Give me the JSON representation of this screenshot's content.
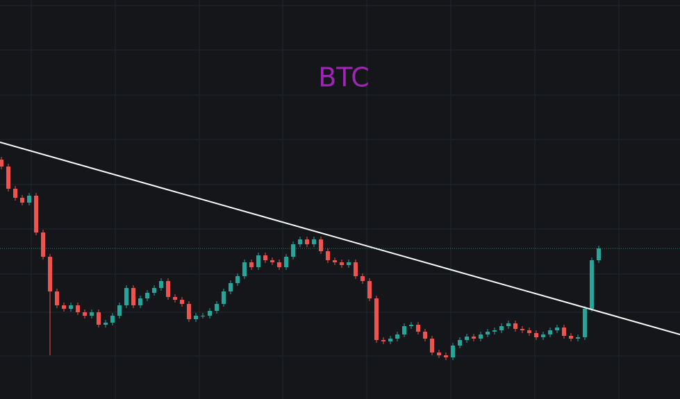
{
  "chart_data": {
    "type": "candlestick",
    "title": "BTC",
    "title_color": "#9c27b0",
    "up_color": "#26a69a",
    "down_color": "#ef5350",
    "ylim": [
      0,
      575
    ],
    "series": [
      {
        "open": [
          345,
          335,
          303,
          290,
          283,
          293,
          240,
          205,
          155,
          135,
          130,
          135,
          125,
          120,
          125,
          107,
          110,
          120,
          135,
          160,
          135,
          145,
          153,
          160,
          170,
          147,
          143,
          137,
          115,
          120,
          120,
          127,
          137,
          155,
          167,
          177,
          197,
          190,
          207,
          200,
          197,
          190,
          205,
          223,
          230,
          223,
          230,
          213,
          200,
          197,
          193,
          197,
          177,
          170,
          145,
          85,
          83,
          87,
          93,
          105,
          107,
          97,
          87,
          67,
          63,
          60,
          77,
          85,
          90,
          87,
          93,
          97,
          99,
          105,
          109,
          101,
          99,
          95,
          89,
          93,
          99,
          103,
          91,
          87,
          89,
          130,
          200
        ],
        "high": [
          349,
          339,
          307,
          294,
          297,
          297,
          244,
          209,
          159,
          139,
          139,
          139,
          129,
          129,
          129,
          114,
          124,
          139,
          164,
          164,
          149,
          157,
          164,
          174,
          174,
          151,
          147,
          141,
          124,
          124,
          131,
          141,
          159,
          171,
          181,
          201,
          201,
          211,
          211,
          204,
          201,
          209,
          227,
          234,
          234,
          234,
          234,
          217,
          204,
          201,
          201,
          201,
          181,
          174,
          149,
          89,
          91,
          97,
          109,
          111,
          111,
          101,
          91,
          71,
          67,
          81,
          89,
          94,
          94,
          97,
          101,
          103,
          109,
          113,
          113,
          105,
          103,
          99,
          97,
          103,
          107,
          107,
          95,
          93,
          134,
          204,
          221
        ],
        "low": [
          331,
          299,
          286,
          279,
          279,
          236,
          201,
          63,
          131,
          126,
          126,
          121,
          116,
          116,
          103,
          103,
          106,
          116,
          131,
          131,
          131,
          141,
          149,
          156,
          143,
          139,
          133,
          111,
          111,
          116,
          116,
          123,
          133,
          151,
          163,
          173,
          186,
          186,
          196,
          193,
          186,
          186,
          201,
          219,
          219,
          219,
          209,
          196,
          193,
          189,
          189,
          173,
          166,
          141,
          81,
          79,
          79,
          83,
          89,
          101,
          93,
          83,
          63,
          59,
          56,
          56,
          73,
          81,
          83,
          83,
          89,
          93,
          95,
          101,
          97,
          95,
          91,
          85,
          85,
          89,
          95,
          87,
          83,
          83,
          85,
          126,
          196
        ],
        "close": [
          335,
          303,
          290,
          283,
          293,
          240,
          205,
          155,
          135,
          130,
          135,
          125,
          120,
          125,
          107,
          110,
          120,
          135,
          160,
          135,
          145,
          153,
          160,
          170,
          147,
          143,
          137,
          115,
          120,
          120,
          127,
          137,
          155,
          167,
          177,
          197,
          190,
          207,
          200,
          197,
          190,
          205,
          223,
          230,
          223,
          230,
          213,
          200,
          197,
          193,
          197,
          177,
          170,
          145,
          85,
          83,
          87,
          93,
          105,
          107,
          97,
          87,
          67,
          63,
          60,
          77,
          85,
          90,
          87,
          93,
          97,
          99,
          105,
          109,
          101,
          99,
          95,
          89,
          93,
          99,
          103,
          91,
          87,
          89,
          130,
          200,
          217
        ]
      }
    ]
  }
}
